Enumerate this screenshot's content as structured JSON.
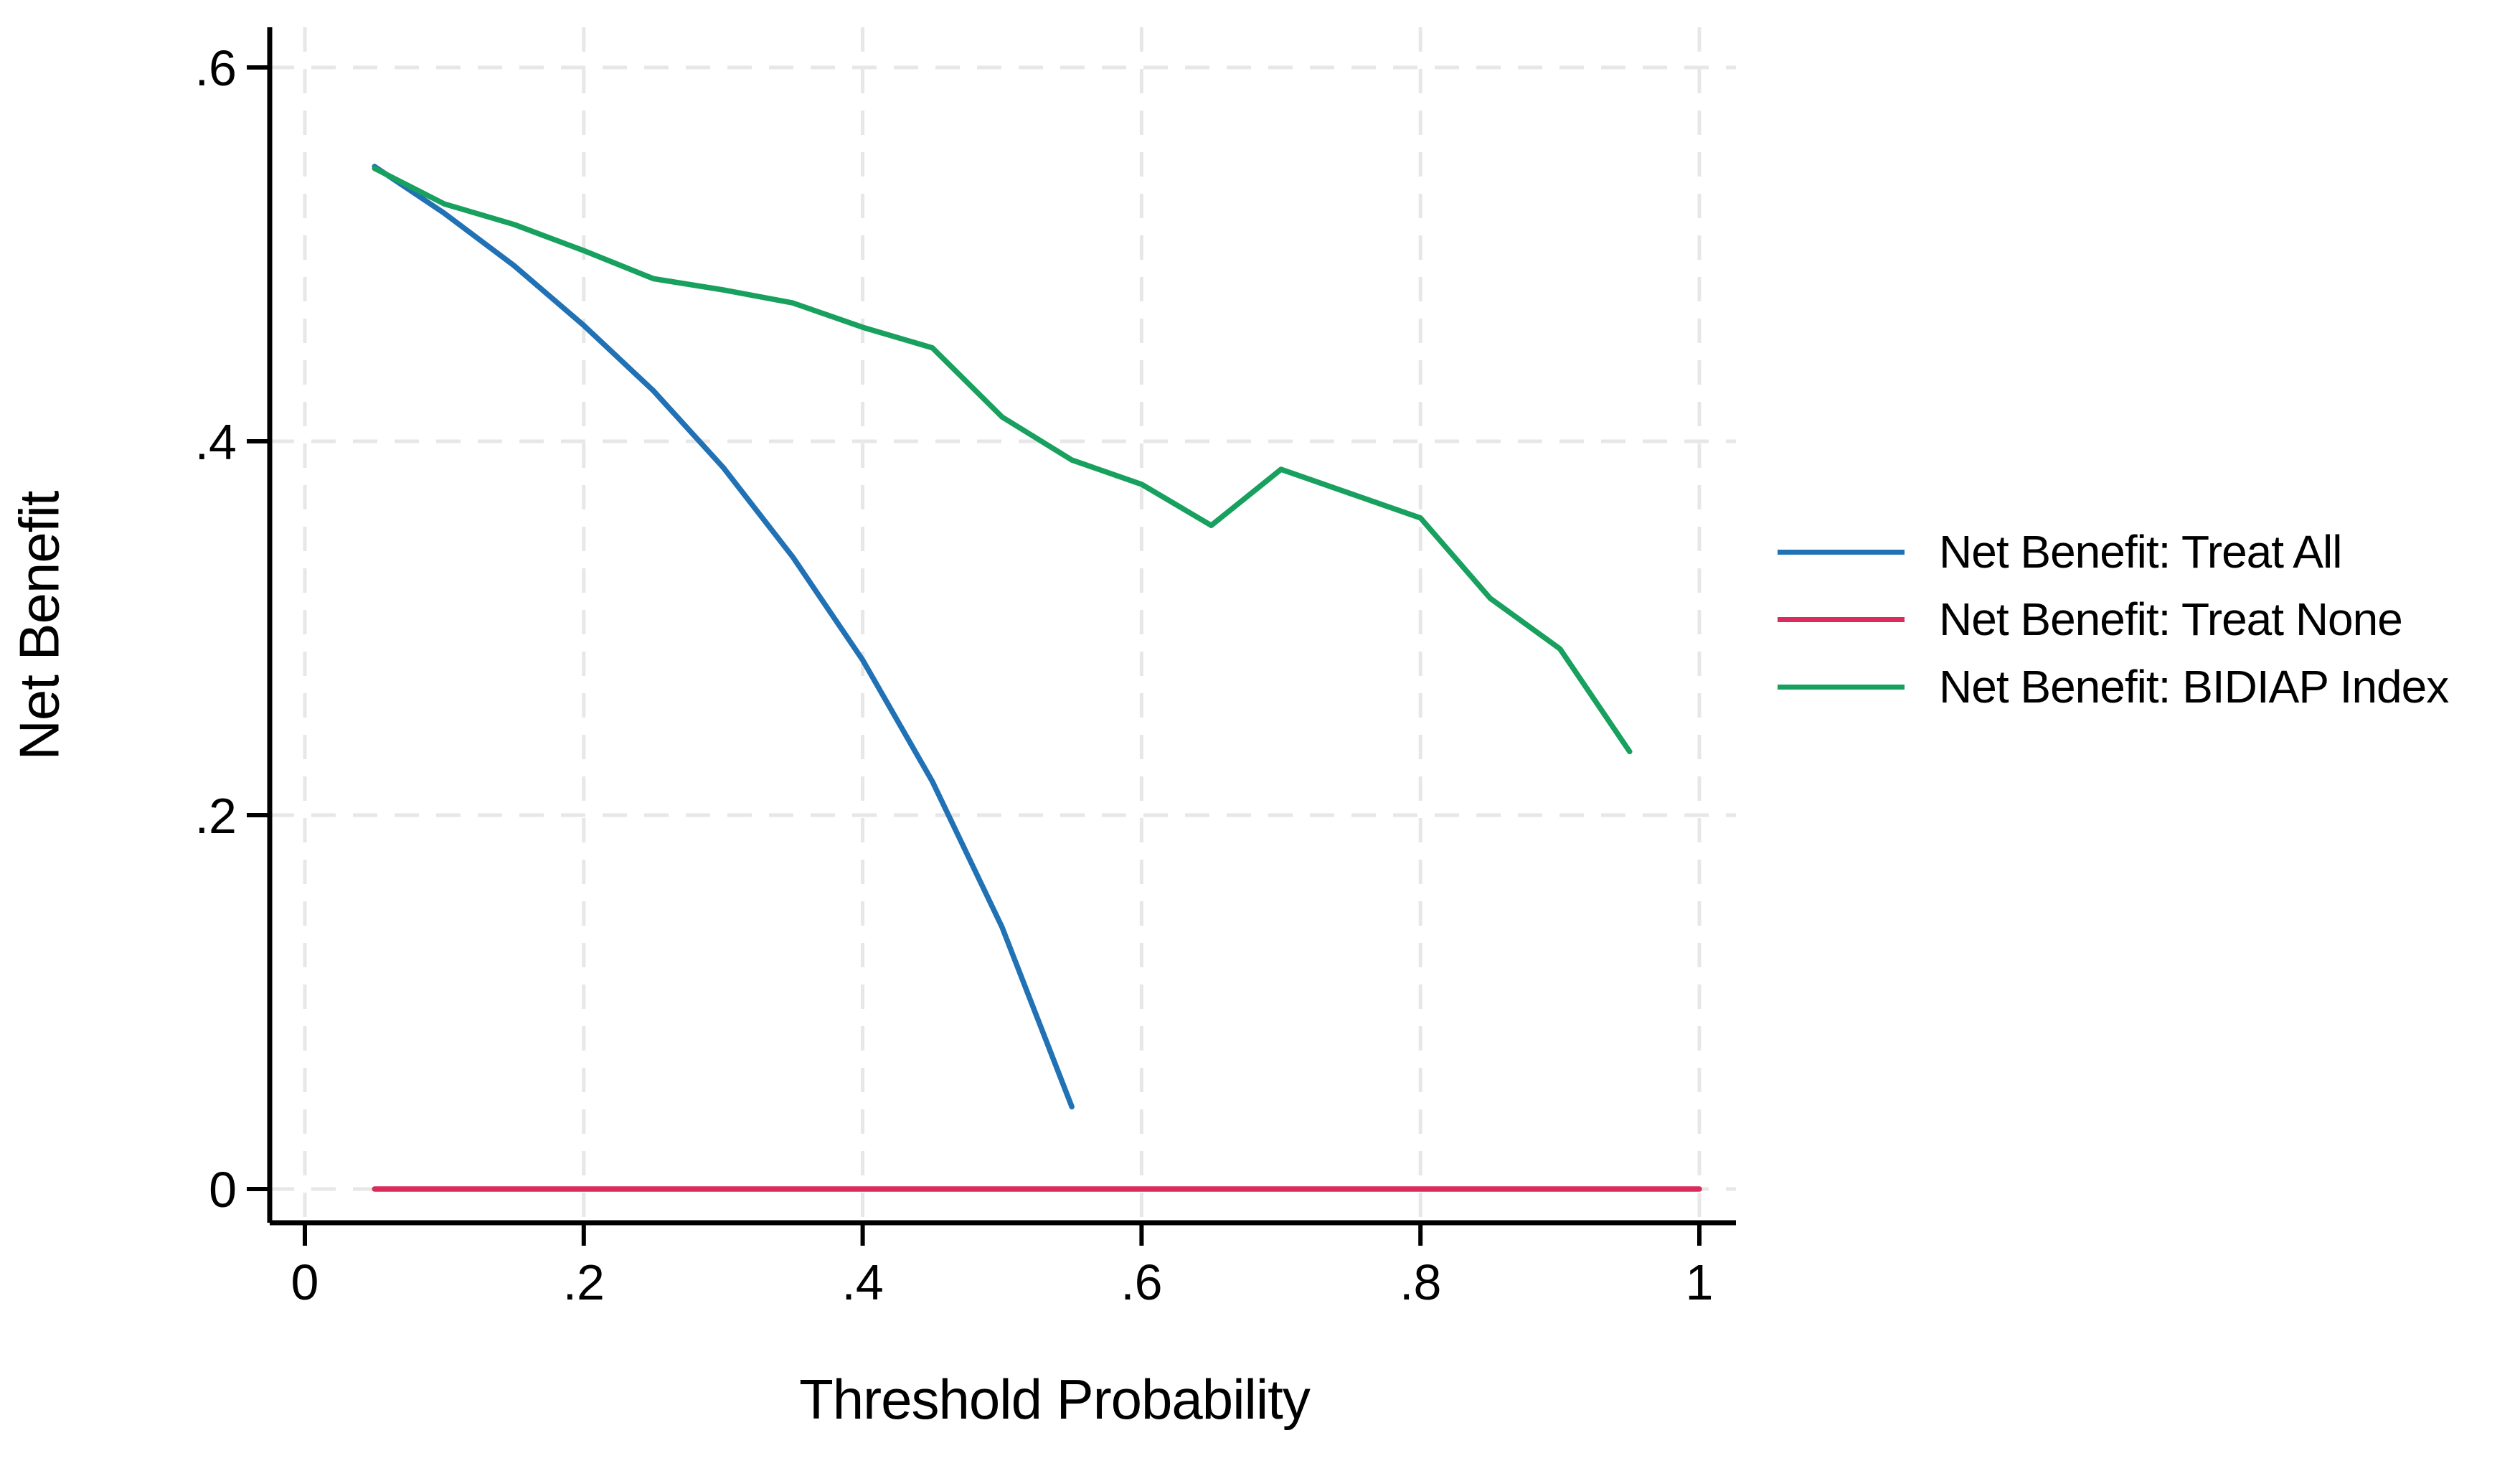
{
  "figure": {
    "background": "#ffffff"
  },
  "chart_data": {
    "type": "line",
    "title": "",
    "xlabel": "Threshold Probability",
    "ylabel": "Net Benefit",
    "xlim": [
      -0.025,
      1.026
    ],
    "ylim": [
      -0.018,
      0.62
    ],
    "grid": "light-gray dashed gridlines on both axes",
    "legend_position": "right-middle",
    "xticks": {
      "values": [
        0,
        0.2,
        0.4,
        0.6,
        0.8,
        1
      ],
      "labels": [
        "0",
        ".2",
        ".4",
        ".6",
        ".8",
        "1"
      ]
    },
    "yticks": {
      "values": [
        0,
        0.2,
        0.4,
        0.6
      ],
      "labels": [
        "0",
        ".2",
        ".4",
        ".6"
      ]
    },
    "series": [
      {
        "name": "Net Benefit: Treat All",
        "color": "#2171b5",
        "x": [
          0.05,
          0.1,
          0.15,
          0.2,
          0.25,
          0.3,
          0.35,
          0.4,
          0.45,
          0.5,
          0.55
        ],
        "y": [
          0.547,
          0.522,
          0.494,
          0.462,
          0.427,
          0.386,
          0.338,
          0.283,
          0.218,
          0.14,
          0.044
        ]
      },
      {
        "name": "Net Benefit: Treat None",
        "color": "#da2c5c",
        "x": [
          0.05,
          1.0
        ],
        "y": [
          0.0,
          0.0
        ]
      },
      {
        "name": "Net Benefit: BIDIAP Index",
        "color": "#18a05f",
        "x": [
          0.05,
          0.1,
          0.15,
          0.2,
          0.25,
          0.3,
          0.35,
          0.4,
          0.45,
          0.5,
          0.55,
          0.6,
          0.65,
          0.7,
          0.75,
          0.8,
          0.85,
          0.9,
          0.95
        ],
        "y": [
          0.546,
          0.527,
          0.516,
          0.502,
          0.487,
          0.481,
          0.474,
          0.461,
          0.45,
          0.413,
          0.39,
          0.377,
          0.355,
          0.385,
          0.372,
          0.359,
          0.316,
          0.289,
          0.234
        ]
      }
    ]
  },
  "colors": {
    "axis": "#000000",
    "tick_label": "#000000",
    "gridline": "#e7e7e7"
  }
}
